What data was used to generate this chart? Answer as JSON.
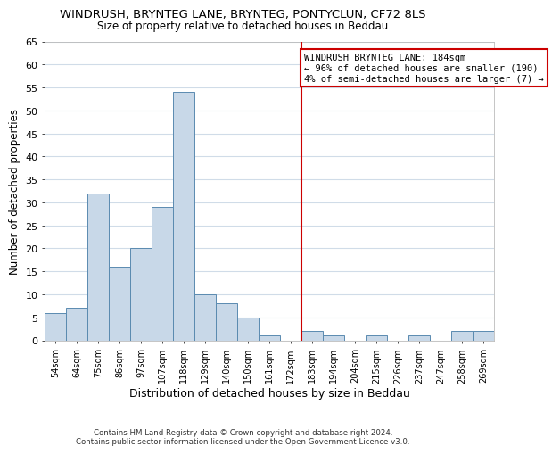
{
  "title": "WINDRUSH, BRYNTEG LANE, BRYNTEG, PONTYCLUN, CF72 8LS",
  "subtitle": "Size of property relative to detached houses in Beddau",
  "xlabel": "Distribution of detached houses by size in Beddau",
  "ylabel": "Number of detached properties",
  "bin_labels": [
    "54sqm",
    "64sqm",
    "75sqm",
    "86sqm",
    "97sqm",
    "107sqm",
    "118sqm",
    "129sqm",
    "140sqm",
    "150sqm",
    "161sqm",
    "172sqm",
    "183sqm",
    "194sqm",
    "204sqm",
    "215sqm",
    "226sqm",
    "237sqm",
    "247sqm",
    "258sqm",
    "269sqm"
  ],
  "bar_heights": [
    6,
    7,
    32,
    16,
    20,
    29,
    54,
    10,
    8,
    5,
    1,
    0,
    2,
    1,
    0,
    1,
    0,
    1,
    0,
    2,
    2
  ],
  "bar_color": "#c8d8e8",
  "bar_edge_color": "#5a8ab0",
  "vline_x_index": 12,
  "vline_color": "#cc0000",
  "annotation_title": "WINDRUSH BRYNTEG LANE: 184sqm",
  "annotation_line1": "← 96% of detached houses are smaller (190)",
  "annotation_line2": "4% of semi-detached houses are larger (7) →",
  "annotation_box_color": "#ffffff",
  "annotation_box_edge_color": "#cc0000",
  "ylim": [
    0,
    65
  ],
  "yticks": [
    0,
    5,
    10,
    15,
    20,
    25,
    30,
    35,
    40,
    45,
    50,
    55,
    60,
    65
  ],
  "footer_line1": "Contains HM Land Registry data © Crown copyright and database right 2024.",
  "footer_line2": "Contains public sector information licensed under the Open Government Licence v3.0.",
  "background_color": "#ffffff",
  "grid_color": "#d0dce8"
}
